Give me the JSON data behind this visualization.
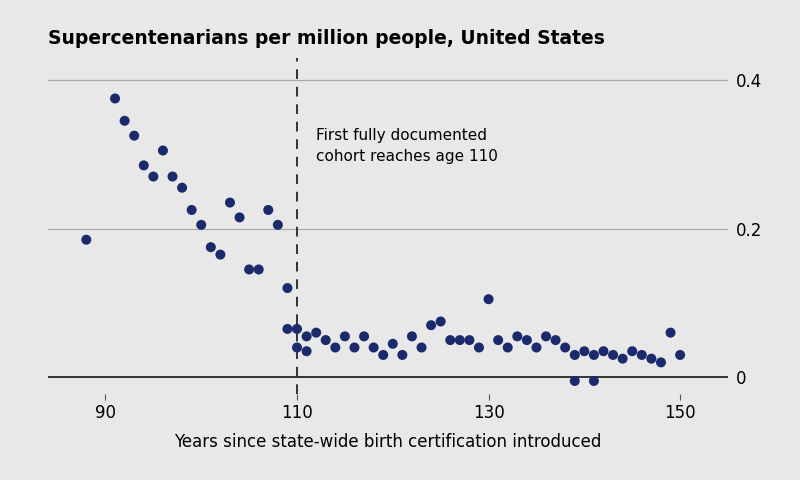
{
  "title": "Supercentenarians per million people, United States",
  "xlabel": "Years since state-wide birth certification introduced",
  "dot_color": "#1a2a6c",
  "background_color": "#e8e8e8",
  "vline_x": 110,
  "annotation_line1": "First fully documented",
  "annotation_line2": "cohort reaches age 110",
  "xlim": [
    84,
    155
  ],
  "ylim": [
    -0.022,
    0.43
  ],
  "xticks": [
    90,
    110,
    130,
    150
  ],
  "yticks": [
    0,
    0.2,
    0.4
  ],
  "scatter_points": [
    [
      88,
      0.185
    ],
    [
      91,
      0.375
    ],
    [
      92,
      0.345
    ],
    [
      93,
      0.325
    ],
    [
      94,
      0.285
    ],
    [
      95,
      0.27
    ],
    [
      96,
      0.305
    ],
    [
      97,
      0.27
    ],
    [
      98,
      0.255
    ],
    [
      99,
      0.225
    ],
    [
      100,
      0.205
    ],
    [
      101,
      0.175
    ],
    [
      102,
      0.165
    ],
    [
      103,
      0.235
    ],
    [
      104,
      0.215
    ],
    [
      105,
      0.145
    ],
    [
      106,
      0.145
    ],
    [
      107,
      0.225
    ],
    [
      108,
      0.205
    ],
    [
      109,
      0.12
    ],
    [
      109,
      0.065
    ],
    [
      110,
      0.065
    ],
    [
      110,
      0.04
    ],
    [
      111,
      0.055
    ],
    [
      111,
      0.035
    ],
    [
      112,
      0.06
    ],
    [
      113,
      0.05
    ],
    [
      114,
      0.04
    ],
    [
      115,
      0.055
    ],
    [
      116,
      0.04
    ],
    [
      117,
      0.055
    ],
    [
      118,
      0.04
    ],
    [
      119,
      0.03
    ],
    [
      120,
      0.045
    ],
    [
      121,
      0.03
    ],
    [
      122,
      0.055
    ],
    [
      123,
      0.04
    ],
    [
      124,
      0.07
    ],
    [
      125,
      0.075
    ],
    [
      126,
      0.05
    ],
    [
      127,
      0.05
    ],
    [
      128,
      0.05
    ],
    [
      129,
      0.04
    ],
    [
      130,
      0.105
    ],
    [
      131,
      0.05
    ],
    [
      132,
      0.04
    ],
    [
      133,
      0.055
    ],
    [
      134,
      0.05
    ],
    [
      135,
      0.04
    ],
    [
      136,
      0.055
    ],
    [
      137,
      0.05
    ],
    [
      138,
      0.04
    ],
    [
      139,
      0.03
    ],
    [
      139,
      -0.005
    ],
    [
      140,
      0.035
    ],
    [
      141,
      0.03
    ],
    [
      141,
      -0.005
    ],
    [
      142,
      0.035
    ],
    [
      143,
      0.03
    ],
    [
      144,
      0.025
    ],
    [
      145,
      0.035
    ],
    [
      146,
      0.03
    ],
    [
      147,
      0.025
    ],
    [
      148,
      0.02
    ],
    [
      149,
      0.06
    ],
    [
      150,
      0.03
    ]
  ]
}
